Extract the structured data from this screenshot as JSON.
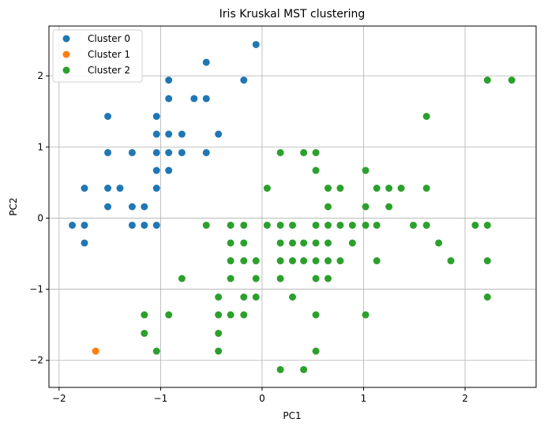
{
  "chart_data": {
    "type": "scatter",
    "title": "Iris Kruskal MST clustering",
    "xlabel": "PC1",
    "ylabel": "PC2",
    "xlim": [
      -2.1,
      2.7
    ],
    "ylim": [
      -2.38,
      2.7
    ],
    "xticks": [
      -2,
      -1,
      0,
      1,
      2
    ],
    "yticks": [
      -2,
      -1,
      0,
      1,
      2
    ],
    "grid": true,
    "legend_position": "top-left",
    "series": [
      {
        "name": "Cluster 0",
        "color": "#1f77b4",
        "points": [
          [
            -0.06,
            2.44
          ],
          [
            -0.55,
            2.19
          ],
          [
            -0.92,
            1.94
          ],
          [
            -0.18,
            1.94
          ],
          [
            -1.52,
            1.43
          ],
          [
            -1.04,
            1.43
          ],
          [
            -0.92,
            1.68
          ],
          [
            -0.67,
            1.68
          ],
          [
            -0.55,
            1.68
          ],
          [
            -1.04,
            1.18
          ],
          [
            -0.92,
            1.18
          ],
          [
            -0.79,
            1.18
          ],
          [
            -0.43,
            1.18
          ],
          [
            -1.52,
            0.92
          ],
          [
            -1.28,
            0.92
          ],
          [
            -1.04,
            0.92
          ],
          [
            -0.92,
            0.92
          ],
          [
            -0.79,
            0.92
          ],
          [
            -0.55,
            0.92
          ],
          [
            -1.04,
            0.67
          ],
          [
            -0.92,
            0.67
          ],
          [
            -1.75,
            0.42
          ],
          [
            -1.52,
            0.42
          ],
          [
            -1.4,
            0.42
          ],
          [
            -1.04,
            0.42
          ],
          [
            -1.52,
            0.16
          ],
          [
            -1.28,
            0.16
          ],
          [
            -1.16,
            0.16
          ],
          [
            -1.87,
            -0.1
          ],
          [
            -1.75,
            -0.1
          ],
          [
            -1.28,
            -0.1
          ],
          [
            -1.16,
            -0.1
          ],
          [
            -1.04,
            -0.1
          ],
          [
            -1.75,
            -0.35
          ]
        ]
      },
      {
        "name": "Cluster 1",
        "color": "#ff7f0e",
        "points": [
          [
            -1.64,
            -1.87
          ]
        ]
      },
      {
        "name": "Cluster 2",
        "color": "#2ca02c",
        "points": [
          [
            2.22,
            1.94
          ],
          [
            2.46,
            1.94
          ],
          [
            1.62,
            1.43
          ],
          [
            0.18,
            0.92
          ],
          [
            0.41,
            0.92
          ],
          [
            0.53,
            0.92
          ],
          [
            0.53,
            0.67
          ],
          [
            1.02,
            0.67
          ],
          [
            0.05,
            0.42
          ],
          [
            0.65,
            0.42
          ],
          [
            0.77,
            0.42
          ],
          [
            1.13,
            0.42
          ],
          [
            1.25,
            0.42
          ],
          [
            1.37,
            0.42
          ],
          [
            1.62,
            0.42
          ],
          [
            0.65,
            0.16
          ],
          [
            1.02,
            0.16
          ],
          [
            1.25,
            0.16
          ],
          [
            -0.55,
            -0.1
          ],
          [
            -0.31,
            -0.1
          ],
          [
            -0.18,
            -0.1
          ],
          [
            0.05,
            -0.1
          ],
          [
            0.18,
            -0.1
          ],
          [
            0.3,
            -0.1
          ],
          [
            0.53,
            -0.1
          ],
          [
            0.65,
            -0.1
          ],
          [
            0.77,
            -0.1
          ],
          [
            0.89,
            -0.1
          ],
          [
            1.02,
            -0.1
          ],
          [
            1.13,
            -0.1
          ],
          [
            1.49,
            -0.1
          ],
          [
            1.62,
            -0.1
          ],
          [
            2.1,
            -0.1
          ],
          [
            2.22,
            -0.1
          ],
          [
            -0.31,
            -0.35
          ],
          [
            -0.18,
            -0.35
          ],
          [
            0.18,
            -0.35
          ],
          [
            0.3,
            -0.35
          ],
          [
            0.41,
            -0.35
          ],
          [
            0.53,
            -0.35
          ],
          [
            0.65,
            -0.35
          ],
          [
            0.89,
            -0.35
          ],
          [
            1.74,
            -0.35
          ],
          [
            -0.31,
            -0.6
          ],
          [
            -0.18,
            -0.6
          ],
          [
            -0.06,
            -0.6
          ],
          [
            0.18,
            -0.6
          ],
          [
            0.3,
            -0.6
          ],
          [
            0.41,
            -0.6
          ],
          [
            0.53,
            -0.6
          ],
          [
            0.65,
            -0.6
          ],
          [
            0.77,
            -0.6
          ],
          [
            1.13,
            -0.6
          ],
          [
            1.86,
            -0.6
          ],
          [
            2.22,
            -0.6
          ],
          [
            -0.79,
            -0.85
          ],
          [
            -0.31,
            -0.85
          ],
          [
            -0.06,
            -0.85
          ],
          [
            0.18,
            -0.85
          ],
          [
            0.53,
            -0.85
          ],
          [
            0.65,
            -0.85
          ],
          [
            -0.43,
            -1.11
          ],
          [
            -0.18,
            -1.11
          ],
          [
            -0.06,
            -1.11
          ],
          [
            0.3,
            -1.11
          ],
          [
            2.22,
            -1.11
          ],
          [
            -1.16,
            -1.36
          ],
          [
            -0.92,
            -1.36
          ],
          [
            -0.43,
            -1.36
          ],
          [
            -0.31,
            -1.36
          ],
          [
            -0.18,
            -1.36
          ],
          [
            0.53,
            -1.36
          ],
          [
            1.02,
            -1.36
          ],
          [
            -1.16,
            -1.62
          ],
          [
            -0.43,
            -1.62
          ],
          [
            -1.04,
            -1.87
          ],
          [
            -0.43,
            -1.87
          ],
          [
            0.53,
            -1.87
          ],
          [
            0.18,
            -2.13
          ],
          [
            0.41,
            -2.13
          ]
        ]
      }
    ]
  }
}
